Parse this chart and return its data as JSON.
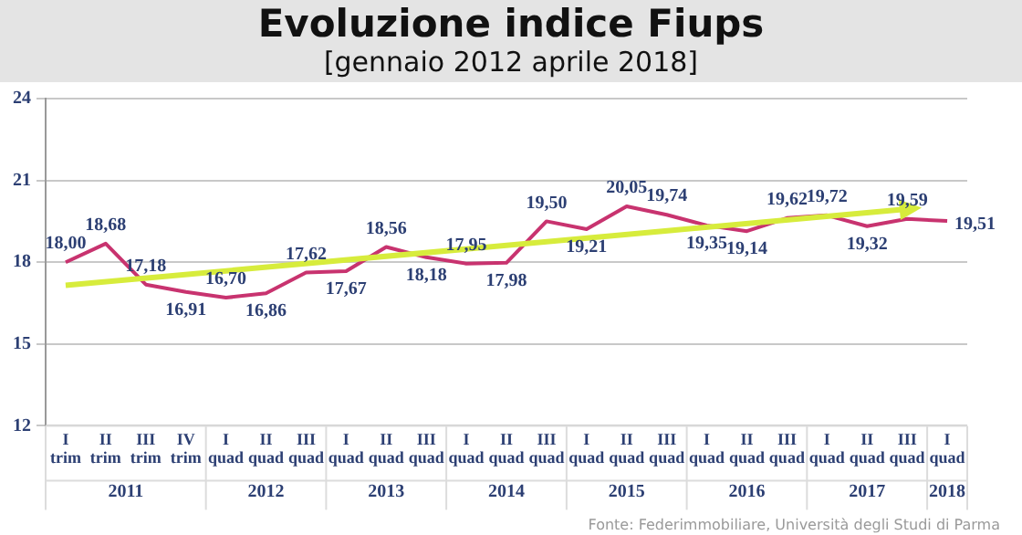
{
  "chart_data": {
    "type": "line",
    "title": "Evoluzione indice Fiups",
    "subtitle": "[gennaio 2012 aprile 2018]",
    "categories": [
      "I trim",
      "II trim",
      "III trim",
      "IV trim",
      "I quad",
      "II quad",
      "III quad",
      "I quad",
      "II quad",
      "III quad",
      "I quad",
      "II quad",
      "III quad",
      "I quad",
      "II quad",
      "III quad",
      "I quad",
      "II quad",
      "III quad",
      "I quad",
      "II quad",
      "III quad",
      "I quad"
    ],
    "series": [
      {
        "color": "#c8336f",
        "values": [
          18.0,
          18.68,
          17.18,
          16.91,
          16.7,
          16.86,
          17.62,
          17.67,
          18.56,
          18.18,
          17.95,
          17.98,
          19.5,
          19.21,
          20.05,
          19.74,
          19.35,
          19.14,
          19.62,
          19.72,
          19.32,
          19.59,
          19.51
        ],
        "value_labels": [
          "18,00",
          "18,68",
          "17,18",
          "16,91",
          "16,70",
          "16,86",
          "17,62",
          "17,67",
          "18,56",
          "18,18",
          "17,95",
          "17,98",
          "19,50",
          "19,21",
          "20,05",
          "19,74",
          "19,35",
          "19,14",
          "19,62",
          "19,72",
          "19,32",
          "19,59",
          "19,51"
        ]
      },
      {
        "type": "line",
        "color": "#d7ec3c",
        "values": [
          17.15,
          null,
          null,
          null,
          null,
          null,
          null,
          null,
          null,
          null,
          null,
          null,
          null,
          null,
          null,
          null,
          null,
          null,
          null,
          null,
          null,
          19.95,
          null
        ]
      }
    ],
    "ylim": [
      12,
      24
    ],
    "yticks": [
      12,
      15,
      18,
      21,
      24
    ],
    "grid": "y",
    "legend": false,
    "annotations": [
      "2011",
      "2012",
      "2013",
      "2014",
      "2015",
      "2016",
      "2017",
      "2018",
      "Fonte: Federimmobiliare, Università degli Studi di Parma"
    ]
  }
}
